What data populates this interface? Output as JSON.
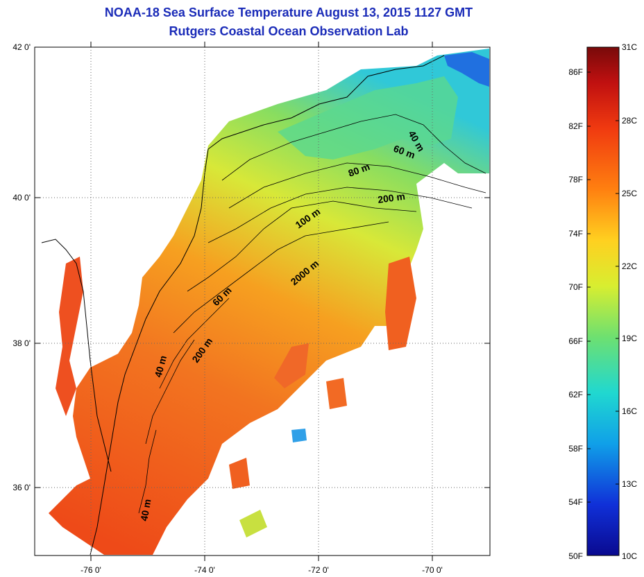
{
  "title": {
    "line1": "NOAA-18 Sea Surface Temperature August 13, 2015 1127 GMT",
    "line2": "Rutgers Coastal Ocean Observation Lab"
  },
  "map": {
    "lat_ticks": [
      "42 0'",
      "40 0'",
      "38 0'",
      "36 0'"
    ],
    "lon_ticks": [
      "-76 0'",
      "-74 0'",
      "-72 0'",
      "-70 0'"
    ],
    "depth_labels": [
      "40 m",
      "60 m",
      "80 m",
      "200 m",
      "100 m",
      "2000 m",
      "60 m",
      "200 m",
      "40 m",
      "40 m"
    ]
  },
  "colorbar": {
    "fahrenheit": [
      "86F",
      "82F",
      "78F",
      "74F",
      "70F",
      "66F",
      "62F",
      "58F",
      "54F",
      "50F"
    ],
    "celsius": [
      "31C",
      "28C",
      "25C",
      "22C",
      "19C",
      "16C",
      "13C",
      "10C"
    ],
    "colors": [
      "#0a0a90",
      "#1030d8",
      "#10a0e8",
      "#20d8d0",
      "#6ee070",
      "#d8ee30",
      "#ffd020",
      "#ff8010",
      "#f03a10",
      "#c01010",
      "#780a0a"
    ]
  }
}
